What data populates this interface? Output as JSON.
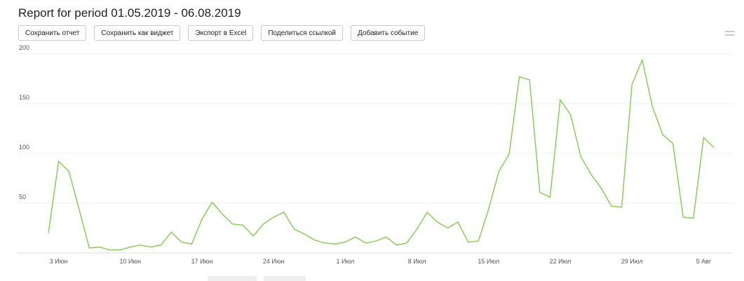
{
  "header": {
    "title": "Report for period 01.05.2019 - 06.08.2019"
  },
  "toolbar": {
    "buttons": [
      "Сохранить отчет",
      "Сохранить как виджет",
      "Экспорт в Excel",
      "Поделиться ссылкой",
      "Добавить событие"
    ]
  },
  "chart_data": {
    "type": "line",
    "categories": [
      null,
      "3 Июн",
      null,
      null,
      null,
      null,
      null,
      null,
      "10 Июн",
      null,
      null,
      null,
      null,
      null,
      null,
      "17 Июн",
      null,
      null,
      null,
      null,
      null,
      null,
      "24 Июн",
      null,
      null,
      null,
      null,
      null,
      null,
      "1 Июл",
      null,
      null,
      null,
      null,
      null,
      null,
      "8 Июл",
      null,
      null,
      null,
      null,
      null,
      null,
      "15 Июл",
      null,
      null,
      null,
      null,
      null,
      null,
      "22 Июл",
      null,
      null,
      null,
      null,
      null,
      null,
      "29 Июл",
      null,
      null,
      null,
      null,
      null,
      null,
      "5 Авг",
      null
    ],
    "series": [
      {
        "color": "#8ccc5a",
        "values": [
          20,
          92,
          82,
          44,
          5,
          6,
          3,
          3,
          6,
          8,
          6,
          8,
          21,
          11,
          9,
          34,
          51,
          39,
          29,
          28,
          17,
          29,
          36,
          41,
          24,
          19,
          13,
          10,
          9,
          11,
          16,
          10,
          12,
          16,
          8,
          10,
          24,
          41,
          31,
          25,
          31,
          11,
          12,
          44,
          82,
          99,
          177,
          174,
          61,
          56,
          154,
          139,
          97,
          79,
          65,
          47,
          46,
          169,
          194,
          147,
          119,
          110,
          36,
          35,
          116,
          106
        ]
      }
    ],
    "ylim": [
      0,
      200
    ],
    "yticks": [
      50,
      100,
      150,
      200
    ],
    "grid": true
  }
}
